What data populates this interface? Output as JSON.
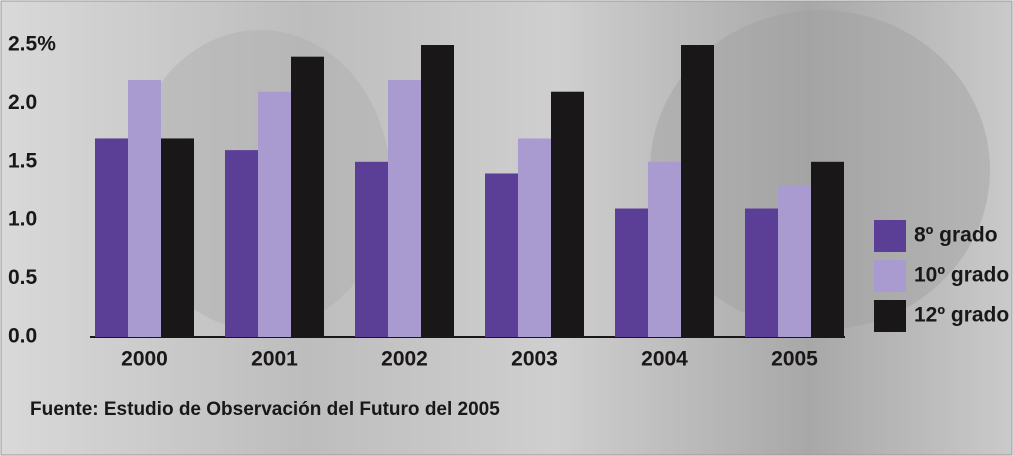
{
  "chart_data": {
    "type": "bar",
    "categories": [
      "2000",
      "2001",
      "2002",
      "2003",
      "2004",
      "2005"
    ],
    "series": [
      {
        "name": "8º grado",
        "color": "#5b3f96",
        "values": [
          1.7,
          1.6,
          1.5,
          1.4,
          1.1,
          1.1
        ]
      },
      {
        "name": "10º grado",
        "color": "#a99bd0",
        "values": [
          2.2,
          2.1,
          2.2,
          1.7,
          1.5,
          1.3
        ]
      },
      {
        "name": "12º grado",
        "color": "#1a1718",
        "values": [
          1.7,
          2.4,
          2.5,
          2.1,
          2.5,
          1.5
        ]
      }
    ],
    "ylim": [
      0,
      2.5
    ],
    "yticks": [
      {
        "value": 0,
        "label": "0.0"
      },
      0.5,
      {
        "value": 1,
        "label": "1.0"
      },
      1.5,
      {
        "value": 2,
        "label": "2.0"
      },
      {
        "value": 2.5,
        "label": "2.5%"
      }
    ],
    "legend": "right",
    "source": "Fuente:  Estudio de Observación del Futuro del 2005"
  }
}
